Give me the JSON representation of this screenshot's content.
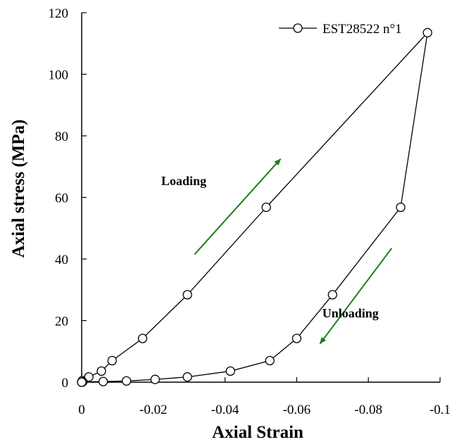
{
  "chart_data": {
    "type": "line",
    "xlabel": "Axial Strain",
    "ylabel": "Axial stress (MPa)",
    "xlim": [
      0,
      -0.1
    ],
    "ylim": [
      0,
      120
    ],
    "xticks": [
      0,
      -0.02,
      -0.04,
      -0.06,
      -0.08,
      -0.1
    ],
    "xtick_labels": [
      "0",
      "-0.02",
      "-0.04",
      "-0.06",
      "-0.08",
      "-0.1"
    ],
    "yticks": [
      0,
      20,
      40,
      60,
      80,
      100,
      120
    ],
    "ytick_labels": [
      "0",
      "20",
      "40",
      "60",
      "80",
      "100",
      "120"
    ],
    "grid": false,
    "legend": "top-right",
    "series": [
      {
        "name": "EST28522 n°1",
        "marker": "open-circle",
        "color": "#000000",
        "x": [
          0,
          -0.0001,
          -0.0002,
          -0.002,
          -0.0055,
          -0.0085,
          -0.017,
          -0.0295,
          -0.0515,
          -0.0965,
          -0.089,
          -0.07,
          -0.06,
          -0.0525,
          -0.0415,
          -0.0295,
          -0.0205,
          -0.0125,
          -0.006,
          -0.0003,
          0
        ],
        "y": [
          0,
          0.2,
          0.5,
          1.7,
          3.6,
          7.0,
          14.2,
          28.4,
          56.8,
          113.5,
          56.8,
          28.4,
          14.2,
          7.0,
          3.6,
          1.7,
          0.9,
          0.4,
          0.2,
          0.1,
          0
        ]
      }
    ],
    "annotations": [
      {
        "text": "Loading",
        "x": -0.0285,
        "y": 64,
        "arrow_from": [
          -0.0315,
          41.5
        ],
        "arrow_to": [
          -0.0555,
          72.5
        ],
        "arrow_color": "#1a7f1a"
      },
      {
        "text": "Unloading",
        "x": -0.075,
        "y": 21,
        "arrow_from": [
          -0.0865,
          43.5
        ],
        "arrow_to": [
          -0.0665,
          12.5
        ],
        "arrow_color": "#1a7f1a"
      }
    ]
  }
}
